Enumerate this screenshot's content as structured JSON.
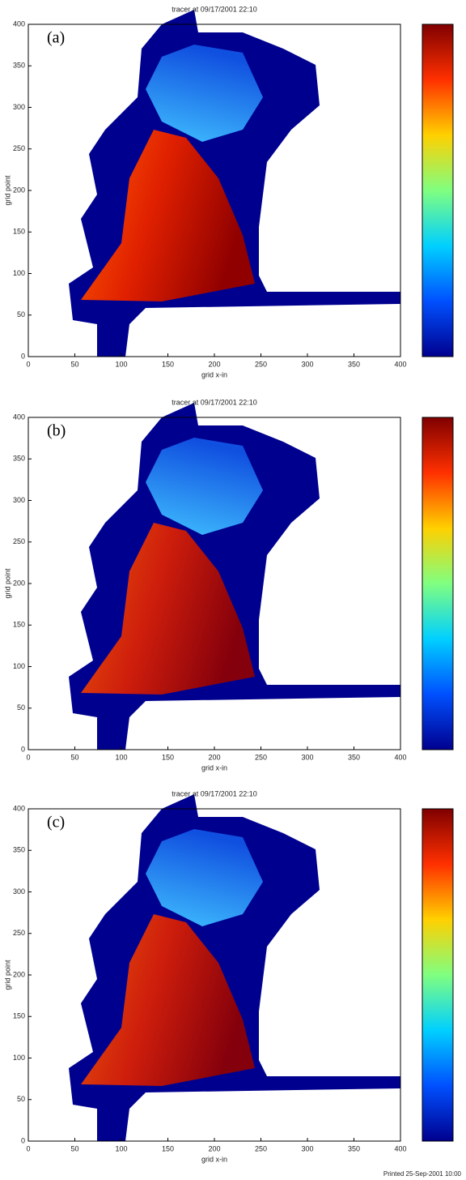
{
  "chart_data": [
    {
      "type": "heatmap",
      "label": "(a)",
      "title": "tracer at 09/17/2001 22:10",
      "xlabel": "grid x-in",
      "ylabel": "grid point",
      "xlim": [
        0,
        400
      ],
      "xticks": [
        0,
        50,
        100,
        150,
        200,
        250,
        300,
        350,
        400
      ],
      "ylim": [
        0,
        400
      ],
      "yticks": [
        0,
        50,
        100,
        150,
        200,
        250,
        300,
        350,
        400
      ],
      "colormap": [
        "#00008f",
        "#0050ff",
        "#00d0ff",
        "#80ff80",
        "#ffd000",
        "#ff3000",
        "#800000"
      ]
    },
    {
      "type": "heatmap",
      "label": "(b)",
      "title": "tracer at 09/17/2001 22:10",
      "xlabel": "grid x-in",
      "ylabel": "grid point",
      "xlim": [
        0,
        400
      ],
      "xticks": [
        0,
        50,
        100,
        150,
        200,
        250,
        300,
        350,
        400
      ],
      "ylim": [
        0,
        400
      ],
      "yticks": [
        0,
        50,
        100,
        150,
        200,
        250,
        300,
        350,
        400
      ],
      "colormap": [
        "#00008f",
        "#0050ff",
        "#00d0ff",
        "#80ff80",
        "#ffd000",
        "#ff3000",
        "#800000"
      ]
    },
    {
      "type": "heatmap",
      "label": "(c)",
      "title": "tracer at 09/17/2001 22:10",
      "xlabel": "grid x-in",
      "ylabel": "grid point",
      "xlim": [
        0,
        400
      ],
      "xticks": [
        0,
        50,
        100,
        150,
        200,
        250,
        300,
        350,
        400
      ],
      "ylim": [
        0,
        400
      ],
      "yticks": [
        0,
        50,
        100,
        150,
        200,
        250,
        300,
        350,
        400
      ],
      "colormap": [
        "#00008f",
        "#0050ff",
        "#00d0ff",
        "#80ff80",
        "#ffd000",
        "#ff3000",
        "#800000"
      ]
    }
  ],
  "footer": "Printed 25-Sep-2001 10:00"
}
